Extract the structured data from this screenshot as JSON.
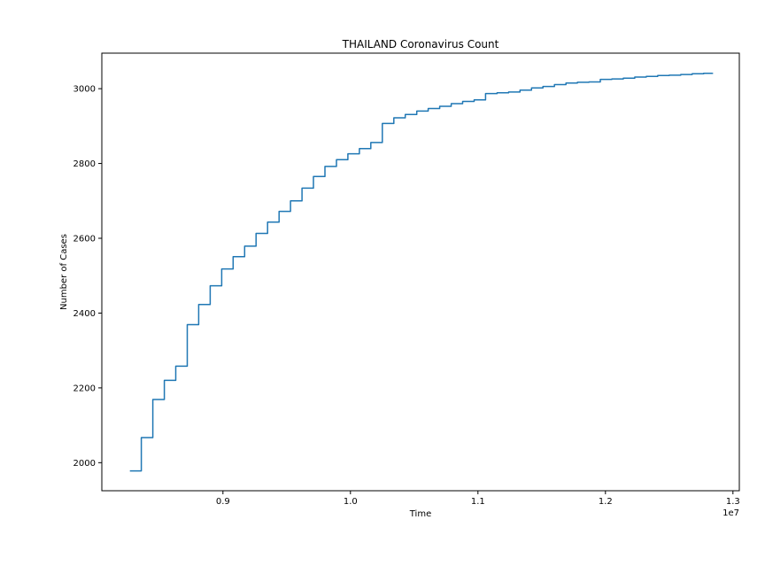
{
  "chart_data": {
    "type": "line",
    "title": "THAILAND Coronavirus Count",
    "xlabel": "Time",
    "ylabel": "Number of Cases",
    "x_offset_label": "1e7",
    "xlim": [
      8050000,
      13050000
    ],
    "ylim": [
      1925,
      3095
    ],
    "xticks": [
      9000000,
      10000000,
      11000000,
      12000000,
      13000000
    ],
    "xtick_labels": [
      "0.9",
      "1.0",
      "1.1",
      "1.2",
      "1.3"
    ],
    "yticks": [
      2000,
      2200,
      2400,
      2600,
      2800,
      3000
    ],
    "ytick_labels": [
      "2000",
      "2200",
      "2400",
      "2600",
      "2800",
      "3000"
    ],
    "grid": false,
    "line_color": "#1f77b4",
    "series": [
      {
        "step": true,
        "x": [
          8270000,
          8360000,
          8450000,
          8540000,
          8630000,
          8720000,
          8810000,
          8900000,
          8990000,
          9080000,
          9170000,
          9260000,
          9350000,
          9440000,
          9530000,
          9620000,
          9710000,
          9800000,
          9890000,
          9980000,
          10070000,
          10160000,
          10250000,
          10340000,
          10430000,
          10520000,
          10610000,
          10700000,
          10790000,
          10880000,
          10970000,
          11060000,
          11150000,
          11240000,
          11330000,
          11420000,
          11510000,
          11600000,
          11690000,
          11780000,
          11870000,
          11960000,
          12050000,
          12140000,
          12230000,
          12320000,
          12410000,
          12500000,
          12590000,
          12680000,
          12770000,
          12840000
        ],
        "y": [
          1978,
          2067,
          2169,
          2220,
          2258,
          2369,
          2423,
          2473,
          2518,
          2551,
          2579,
          2613,
          2643,
          2672,
          2700,
          2734,
          2765,
          2792,
          2810,
          2826,
          2840,
          2856,
          2907,
          2922,
          2931,
          2940,
          2947,
          2953,
          2960,
          2966,
          2970,
          2987,
          2989,
          2991,
          2996,
          3002,
          3006,
          3011,
          3015,
          3017,
          3018,
          3025,
          3026,
          3028,
          3031,
          3033,
          3035,
          3036,
          3038,
          3040,
          3041,
          3042
        ]
      }
    ]
  }
}
